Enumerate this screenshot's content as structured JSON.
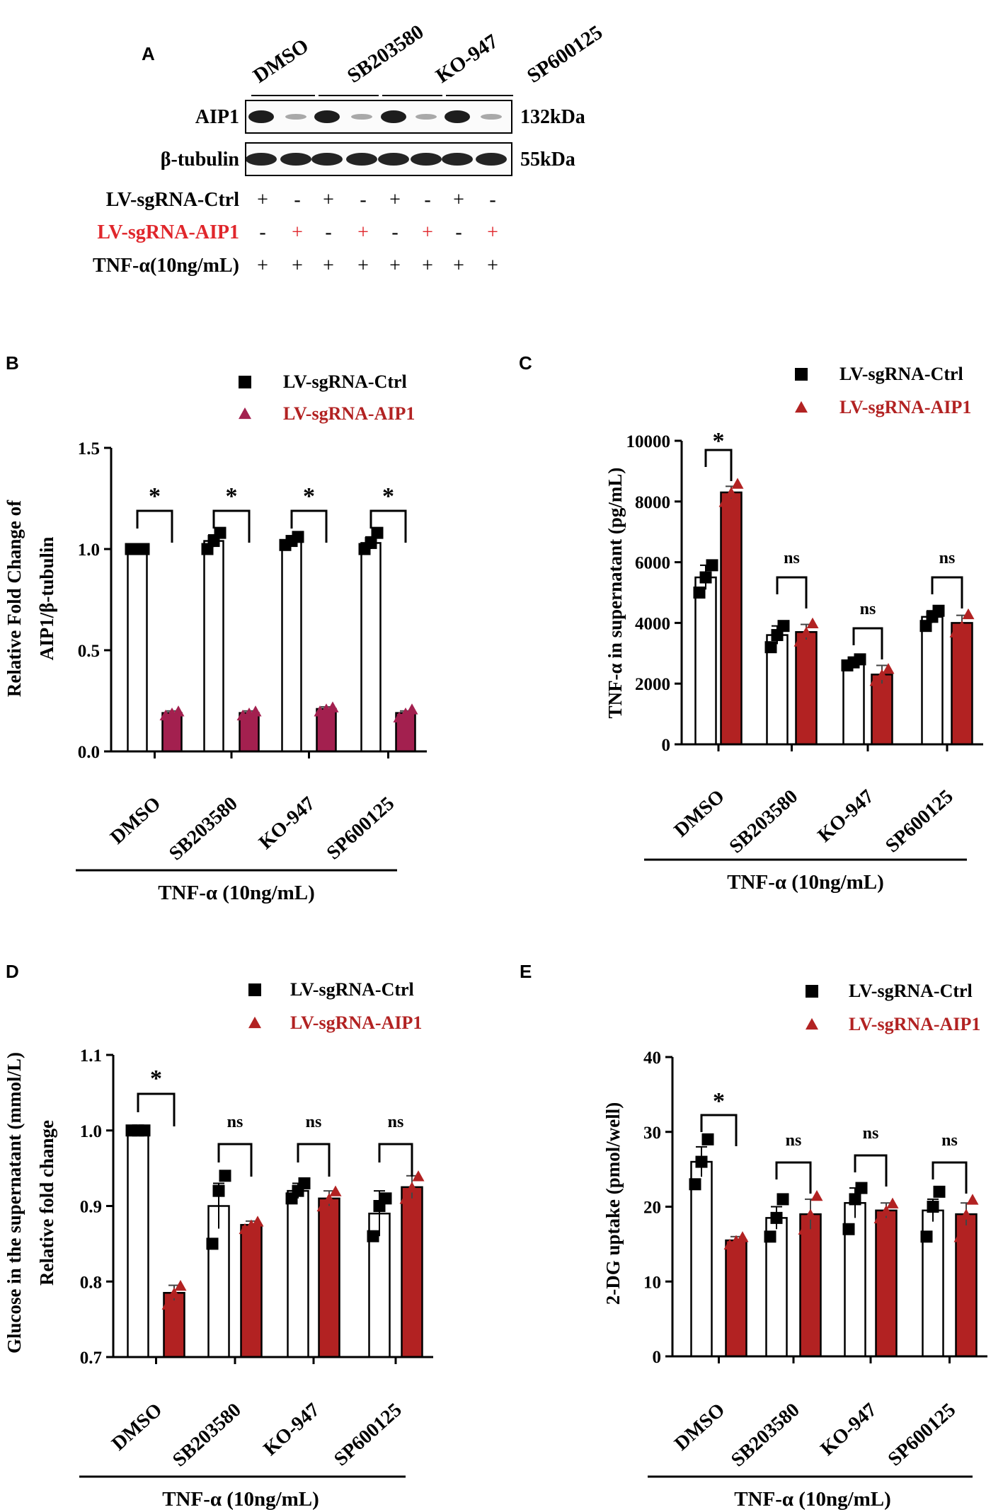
{
  "figure": {
    "panel_a": {
      "letter": "A",
      "groups": [
        "DMSO",
        "SB203580",
        "KO-947",
        "SP600125"
      ],
      "blots": [
        {
          "label": "AIP1",
          "size": "132kDa"
        },
        {
          "label": "β-tubulin",
          "size": "55kDa"
        }
      ],
      "rows": [
        {
          "label": "LV-sgRNA-Ctrl",
          "color": "#000000",
          "signs": [
            "+",
            "-",
            "+",
            "-",
            "+",
            "-",
            "+",
            "-"
          ]
        },
        {
          "label": "LV-sgRNA-AIP1",
          "color": "#e0262b",
          "signs": [
            "-",
            "+",
            "-",
            "+",
            "-",
            "+",
            "-",
            "+"
          ]
        },
        {
          "label": "TNF-α(10ng/mL)",
          "color": "#000000",
          "signs": [
            "+",
            "+",
            "+",
            "+",
            "+",
            "+",
            "+",
            "+"
          ]
        }
      ]
    },
    "colors": {
      "ctrl": "#000000",
      "aip1": "#b22222",
      "aip1_b": "#a3204f",
      "label_red": "#e0262b"
    }
  },
  "chart_data": [
    {
      "panel": "B",
      "type": "bar",
      "ylabel_lines": [
        "Relative Fold Change of",
        "AIP1/β-tubulin"
      ],
      "xtitle": "TNF-α (10ng/mL)",
      "categories": [
        "DMSO",
        "SB203580",
        "KO-947",
        "SP600125"
      ],
      "ylim": [
        0,
        1.5
      ],
      "yticks": [
        0.0,
        0.5,
        1.0,
        1.5
      ],
      "ytick_labels": [
        "0.0",
        "0.5",
        "1.0",
        "1.5"
      ],
      "legend": [
        "LV-sgRNA-Ctrl",
        "LV-sgRNA-AIP1"
      ],
      "series": [
        {
          "name": "LV-sgRNA-Ctrl",
          "values": [
            1.0,
            1.04,
            1.04,
            1.03
          ],
          "errors": [
            0.0,
            0.03,
            0.02,
            0.03
          ],
          "points": [
            [
              1.0,
              1.0,
              1.0
            ],
            [
              1.0,
              1.04,
              1.08
            ],
            [
              1.02,
              1.04,
              1.06
            ],
            [
              1.0,
              1.03,
              1.08
            ]
          ]
        },
        {
          "name": "LV-sgRNA-AIP1",
          "values": [
            0.19,
            0.19,
            0.21,
            0.19
          ],
          "errors": [
            0.01,
            0.01,
            0.01,
            0.01
          ],
          "points": [
            [
              0.18,
              0.19,
              0.2
            ],
            [
              0.18,
              0.19,
              0.2
            ],
            [
              0.2,
              0.21,
              0.22
            ],
            [
              0.17,
              0.19,
              0.21
            ]
          ]
        }
      ],
      "annotations": [
        "*",
        "*",
        "*",
        "*"
      ]
    },
    {
      "panel": "C",
      "type": "bar",
      "ylabel_lines": [
        "TNF-α in supernatant (pg/mL)"
      ],
      "xtitle": "TNF-α (10ng/mL)",
      "categories": [
        "DMSO",
        "SB203580",
        "KO-947",
        "SP600125"
      ],
      "ylim": [
        0,
        10000
      ],
      "yticks": [
        0,
        2000,
        4000,
        6000,
        8000,
        10000
      ],
      "ytick_labels": [
        "0",
        "2000",
        "4000",
        "6000",
        "8000",
        "10000"
      ],
      "legend": [
        "LV-sgRNA-Ctrl",
        "LV-sgRNA-AIP1"
      ],
      "series": [
        {
          "name": "LV-sgRNA-Ctrl",
          "values": [
            5500,
            3600,
            2700,
            4200
          ],
          "errors": [
            400,
            300,
            100,
            200
          ],
          "points": [
            [
              5000,
              5500,
              5900
            ],
            [
              3200,
              3600,
              3900
            ],
            [
              2600,
              2700,
              2800
            ],
            [
              3900,
              4200,
              4400
            ]
          ]
        },
        {
          "name": "LV-sgRNA-AIP1",
          "values": [
            8300,
            3700,
            2300,
            4000
          ],
          "errors": [
            200,
            250,
            300,
            250
          ],
          "points": [
            [
              8000,
              8300,
              8600
            ],
            [
              3400,
              3700,
              4000
            ],
            [
              2100,
              2300,
              2500
            ],
            [
              3700,
              3900,
              4300
            ]
          ]
        }
      ],
      "annotations": [
        "*",
        "ns",
        "ns",
        "ns"
      ]
    },
    {
      "panel": "D",
      "type": "bar",
      "ylabel_lines": [
        "Glucose in the supernatant (mmol/L)",
        "Relative fold change"
      ],
      "xtitle": "TNF-α (10ng/mL)",
      "categories": [
        "DMSO",
        "SB203580",
        "KO-947",
        "SP600125"
      ],
      "ylim": [
        0.7,
        1.1
      ],
      "yticks": [
        0.7,
        0.8,
        0.9,
        1.0,
        1.1
      ],
      "ytick_labels": [
        "0.7",
        "0.8",
        "0.9",
        "1.0",
        "1.1"
      ],
      "legend": [
        "LV-sgRNA-Ctrl",
        "LV-sgRNA-AIP1"
      ],
      "series": [
        {
          "name": "LV-sgRNA-Ctrl",
          "values": [
            1.0,
            0.9,
            0.92,
            0.89
          ],
          "errors": [
            0.0,
            0.03,
            0.01,
            0.03
          ],
          "points": [
            [
              1.0,
              1.0,
              1.0
            ],
            [
              0.85,
              0.92,
              0.94
            ],
            [
              0.91,
              0.92,
              0.93
            ],
            [
              0.86,
              0.9,
              0.91
            ]
          ]
        },
        {
          "name": "LV-sgRNA-AIP1",
          "values": [
            0.785,
            0.875,
            0.91,
            0.925
          ],
          "errors": [
            0.01,
            0.005,
            0.01,
            0.015
          ],
          "points": [
            [
              0.77,
              0.785,
              0.795
            ],
            [
              0.87,
              0.875,
              0.88
            ],
            [
              0.9,
              0.91,
              0.92
            ],
            [
              0.91,
              0.925,
              0.94
            ]
          ]
        }
      ],
      "annotations": [
        "*",
        "ns",
        "ns",
        "ns"
      ]
    },
    {
      "panel": "E",
      "type": "bar",
      "ylabel_lines": [
        "2-DG uptake (pmol/well)"
      ],
      "xtitle": "TNF-α (10ng/mL)",
      "categories": [
        "DMSO",
        "SB203580",
        "KO-947",
        "SP600125"
      ],
      "ylim": [
        0,
        40
      ],
      "yticks": [
        0,
        10,
        20,
        30,
        40
      ],
      "ytick_labels": [
        "0",
        "10",
        "20",
        "30",
        "40"
      ],
      "legend": [
        "LV-sgRNA-Ctrl",
        "LV-sgRNA-AIP1"
      ],
      "series": [
        {
          "name": "LV-sgRNA-Ctrl",
          "values": [
            26,
            18.5,
            20.5,
            19.5
          ],
          "errors": [
            2,
            1.5,
            2,
            1.5
          ],
          "points": [
            [
              23,
              26,
              29
            ],
            [
              16,
              18.5,
              21
            ],
            [
              17,
              21,
              22.5
            ],
            [
              16,
              20,
              22
            ]
          ]
        },
        {
          "name": "LV-sgRNA-AIP1",
          "values": [
            15.5,
            19,
            19.5,
            19
          ],
          "errors": [
            0.5,
            2,
            1,
            1.5
          ],
          "points": [
            [
              15,
              15.5,
              16
            ],
            [
              17,
              19,
              21.5
            ],
            [
              18.5,
              19.5,
              20.5
            ],
            [
              16,
              19,
              21
            ]
          ]
        }
      ],
      "annotations": [
        "*",
        "ns",
        "ns",
        "ns"
      ]
    }
  ]
}
